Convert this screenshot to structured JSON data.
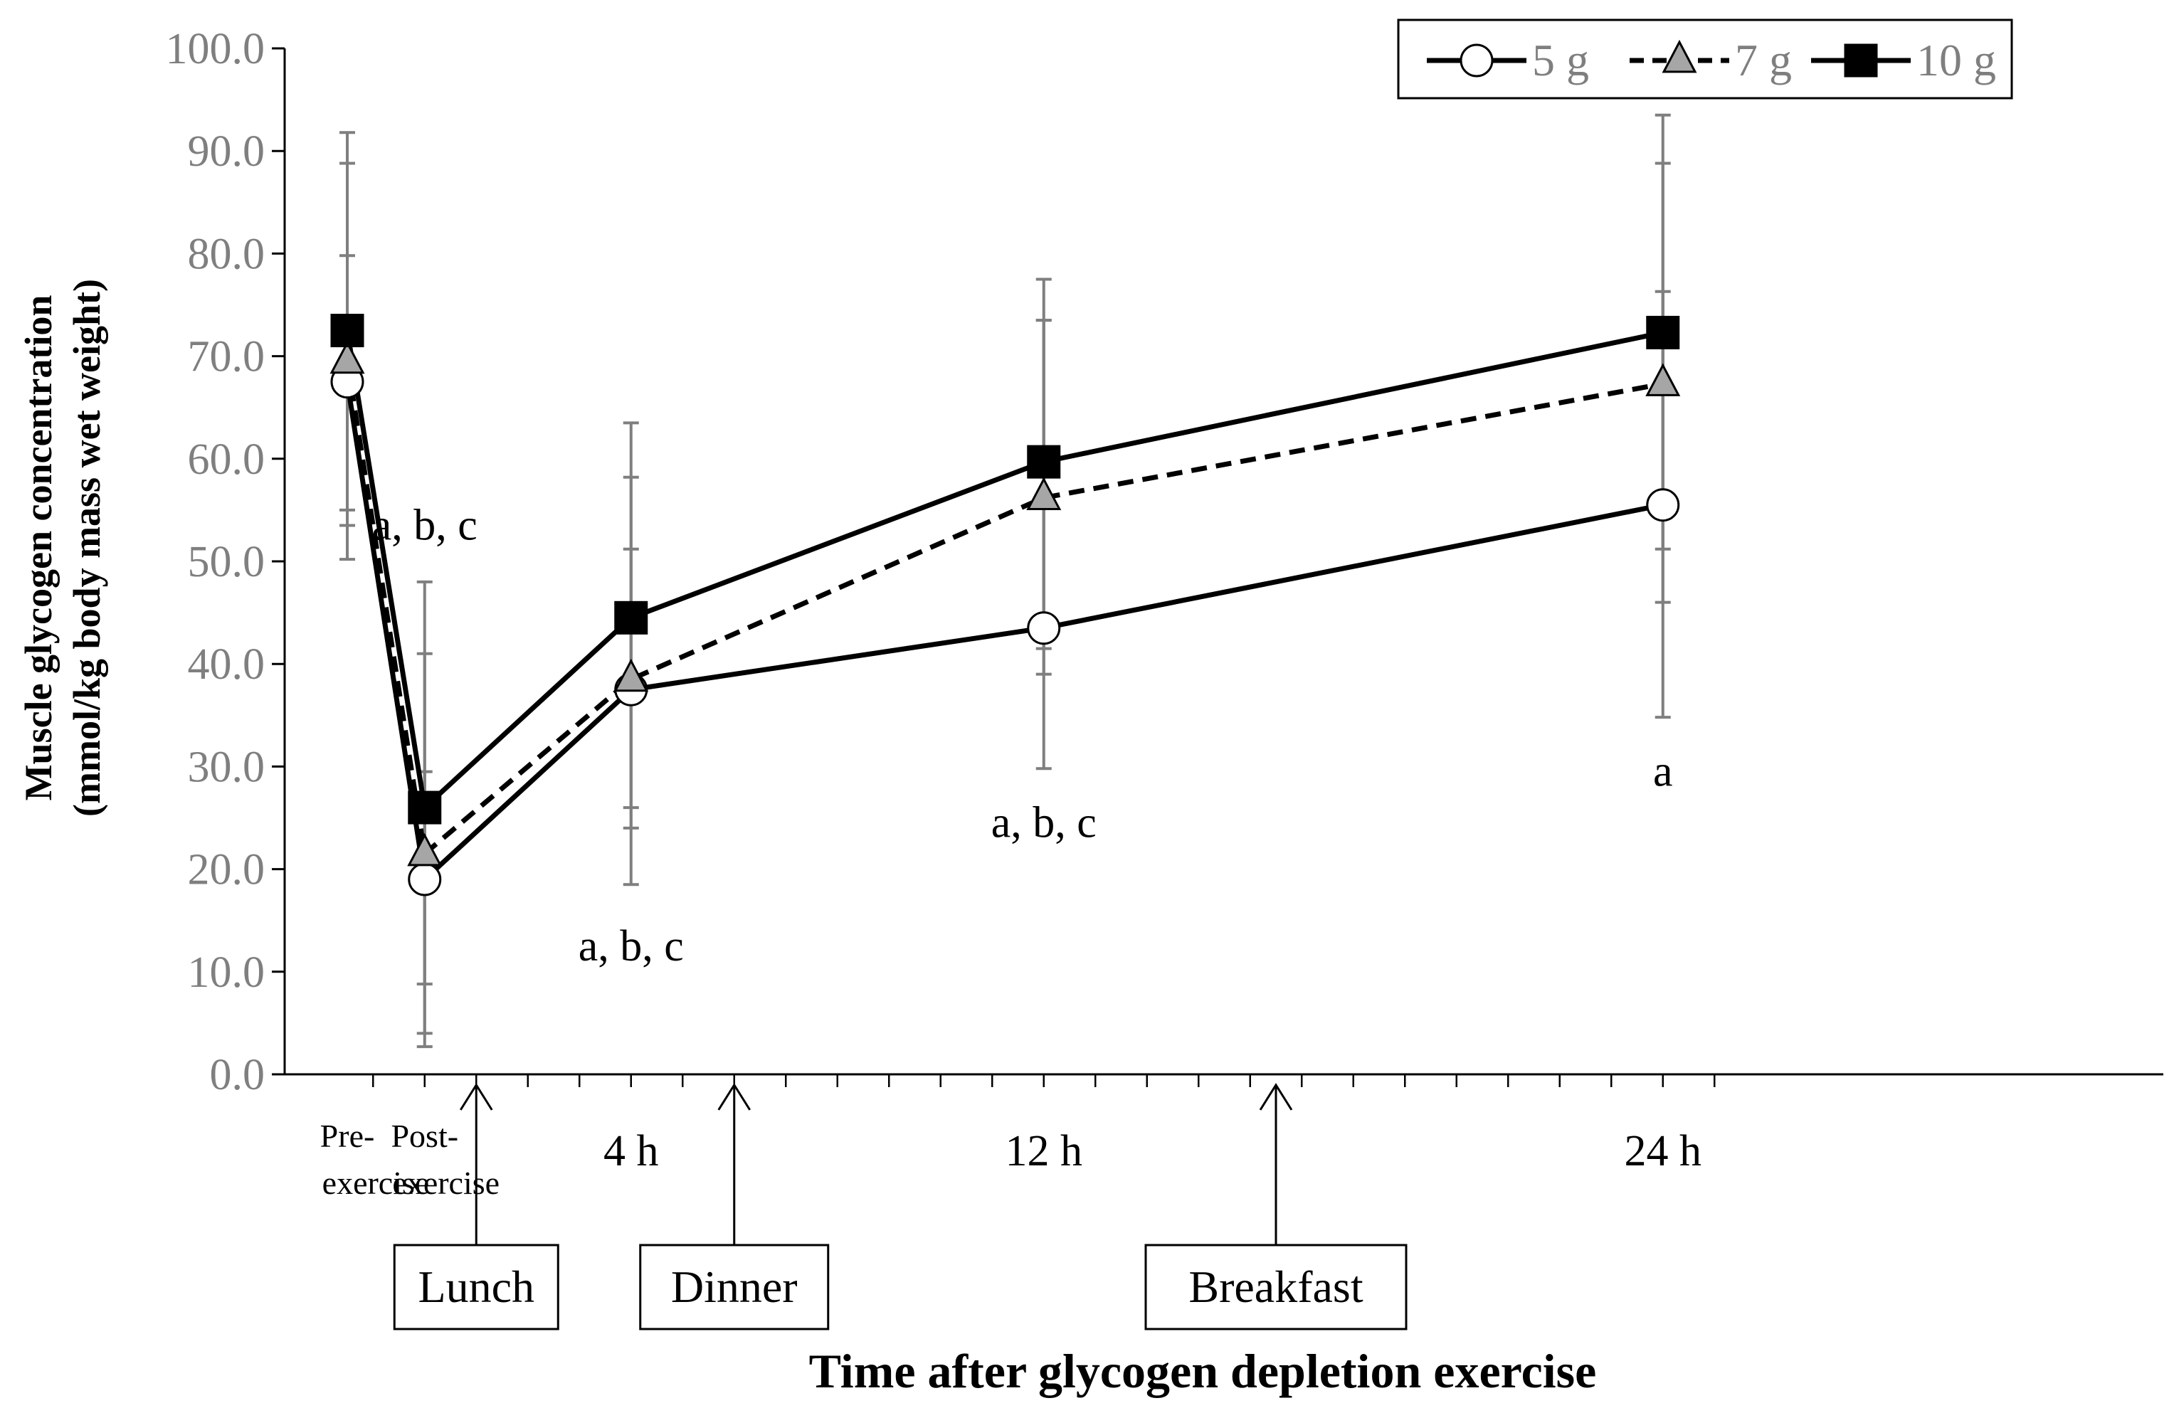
{
  "chart_data": {
    "type": "line",
    "title": "",
    "xlabel": "Time after glycogen depletion exercise",
    "ylabel_line1": "Muscle glycogen concentration",
    "ylabel_line2": "(mmol/kg body mass wet weight)",
    "ylim": [
      0,
      100
    ],
    "ytick_step": 10,
    "y_ticks": [
      "0.0",
      "10.0",
      "20.0",
      "30.0",
      "40.0",
      "50.0",
      "60.0",
      "70.0",
      "80.0",
      "90.0",
      "100.0"
    ],
    "x_hours": [
      -1.5,
      0,
      4,
      12,
      24
    ],
    "categories": [
      {
        "line1": "Pre-",
        "line2": "exercise"
      },
      {
        "line1": "Post-",
        "line2": "exercise"
      },
      {
        "line1": "4 h",
        "line2": ""
      },
      {
        "line1": "12 h",
        "line2": ""
      },
      {
        "line1": "24 h",
        "line2": ""
      }
    ],
    "series": [
      {
        "name": "5 g",
        "marker": "circle",
        "dash": "solid",
        "values": [
          67.5,
          19.0,
          37.5,
          43.5,
          55.5
        ],
        "err_low": [
          50.2,
          2.7,
          18.5,
          29.8,
          34.8
        ],
        "err_high": [
          88.8,
          41.0,
          58.2,
          73.5,
          76.3
        ]
      },
      {
        "name": "7 g",
        "marker": "triangle",
        "dash": "dashed",
        "values": [
          69.5,
          21.5,
          38.5,
          56.2,
          67.3
        ],
        "err_low": [
          53.5,
          4.0,
          24.0,
          39.0,
          46.0
        ],
        "err_high": [
          91.8,
          48.0,
          51.2,
          73.5,
          88.8
        ]
      },
      {
        "name": "10 g",
        "marker": "square",
        "dash": "solid",
        "values": [
          72.5,
          26.0,
          44.5,
          59.7,
          72.3
        ],
        "err_low": [
          55.0,
          8.8,
          26.0,
          41.5,
          51.2
        ],
        "err_high": [
          79.8,
          29.5,
          63.5,
          77.5,
          93.5
        ]
      }
    ],
    "annotations": [
      {
        "text": "a, b, c",
        "x_index": 1,
        "y": 53.5
      },
      {
        "text": "a, b, c",
        "x_index": 2,
        "y": 12.5
      },
      {
        "text": "a, b, c",
        "x_index": 3,
        "y": 24.5
      },
      {
        "text": "a",
        "x_index": 4,
        "y": 29.5
      }
    ],
    "meals": [
      {
        "label": "Lunch",
        "hour": 1
      },
      {
        "label": "Dinner",
        "hour": 6
      },
      {
        "label": "Breakfast",
        "hour": 16.5
      }
    ],
    "legend_position": "top-right"
  },
  "colors": {
    "axis": "#000000",
    "error_bar": "#7f7f7f",
    "tick_text": "#7f7f7f",
    "marker_circle_fill": "#ffffff",
    "marker_triangle_fill": "#a6a6a6",
    "marker_square_fill": "#000000"
  }
}
